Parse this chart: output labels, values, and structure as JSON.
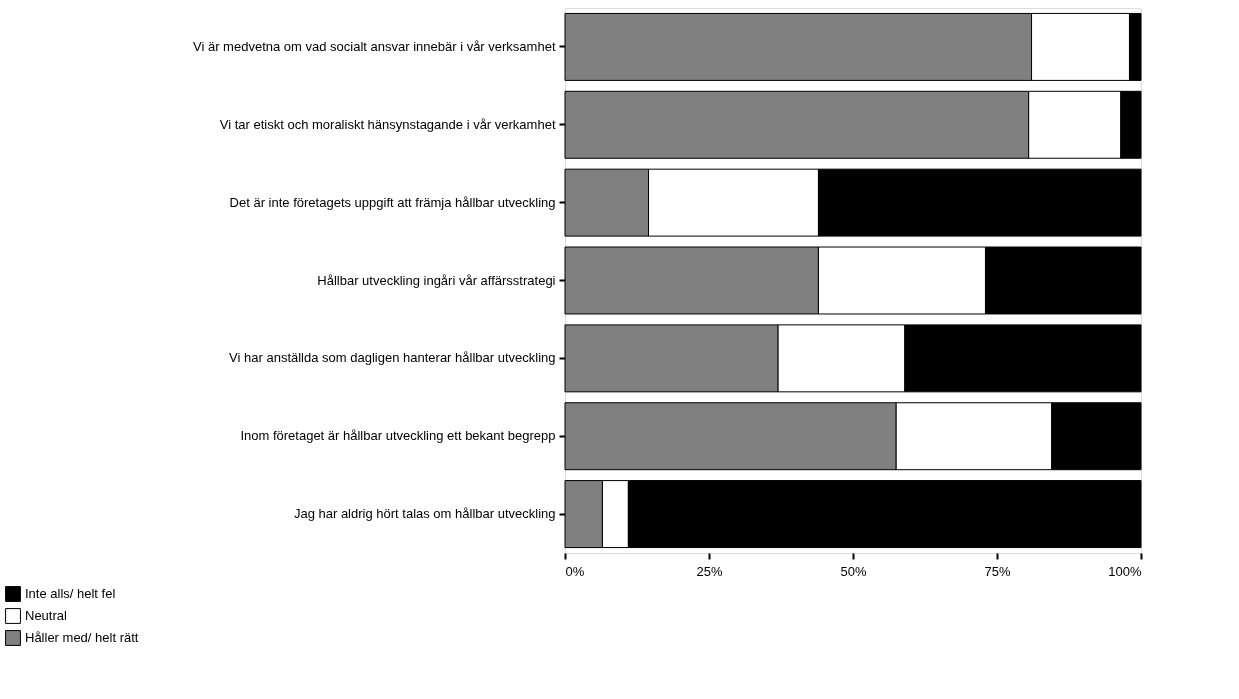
{
  "chart_data": {
    "type": "bar",
    "orientation": "horizontal",
    "stacked": true,
    "categories": [
      "Vi är medvetna om vad socialt ansvar innebär i vår verksamhet",
      "Vi tar etiskt och moraliskt hänsynstagande i vår verkamhet",
      "Det är inte företagets uppgift att främja hållbar utveckling",
      "Hållbar utveckling ingåri vår affärsstrategi",
      "Vi har anställda som dagligen hanterar hållbar utveckling",
      "Inom företaget är hållbar utveckling ett bekant begrepp",
      "Jag har aldrig hört talas om hållbar utveckling"
    ],
    "series": [
      {
        "name": "Håller med/ helt rätt",
        "color": "#808080",
        "values": [
          81,
          80.5,
          14.5,
          44,
          37,
          57.5,
          6.5
        ]
      },
      {
        "name": "Neutral",
        "color": "#ffffff",
        "values": [
          17,
          16,
          29.5,
          29,
          22,
          27,
          4.5
        ]
      },
      {
        "name": "Inte alls/ helt fel",
        "color": "#000000",
        "values": [
          2,
          3.5,
          56,
          27,
          41,
          15.5,
          89
        ]
      }
    ],
    "xlim": [
      0,
      100
    ],
    "xticks": [
      {
        "value": 0,
        "label": "0%"
      },
      {
        "value": 25,
        "label": "25%"
      },
      {
        "value": 50,
        "label": "50%"
      },
      {
        "value": 75,
        "label": "75%"
      },
      {
        "value": 100,
        "label": "100%"
      }
    ],
    "grid": false,
    "legend": "bottom left"
  }
}
